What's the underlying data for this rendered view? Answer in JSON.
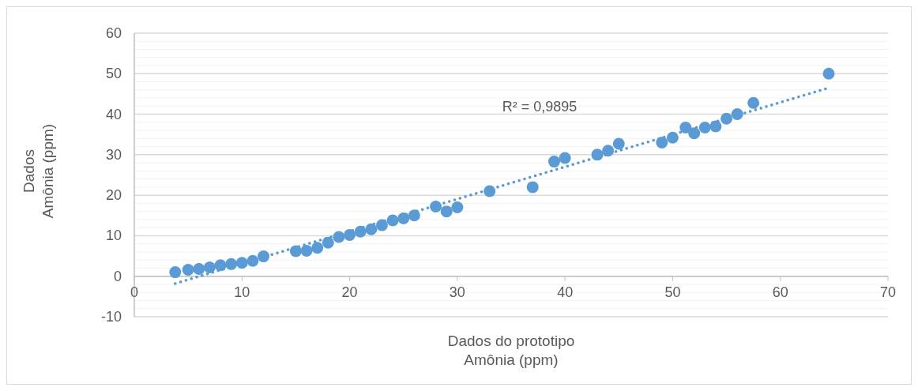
{
  "chart_data": {
    "type": "scatter",
    "xlabel": "Dados do prototipo\nAmônia (ppm)",
    "ylabel": "Dados\nAmônia (ppm)",
    "xlim": [
      0,
      70
    ],
    "xticks": [
      0,
      10,
      20,
      30,
      40,
      50,
      60,
      70
    ],
    "ylim": [
      -10,
      60
    ],
    "yticks": [
      -10,
      {
        "value": -8,
        "label": null
      },
      {
        "value": -6,
        "label": null
      },
      {
        "value": -4,
        "label": null
      },
      {
        "value": -2,
        "label": null
      },
      0,
      {
        "value": 2,
        "label": null
      },
      {
        "value": 4,
        "label": null
      },
      {
        "value": 6,
        "label": null
      },
      {
        "value": 8,
        "label": null
      },
      10,
      {
        "value": 12,
        "label": null
      },
      {
        "value": 14,
        "label": null
      },
      {
        "value": 16,
        "label": null
      },
      {
        "value": 18,
        "label": null
      },
      20,
      {
        "value": 22,
        "label": null
      },
      {
        "value": 24,
        "label": null
      },
      {
        "value": 26,
        "label": null
      },
      {
        "value": 28,
        "label": null
      },
      30,
      {
        "value": 32,
        "label": null
      },
      {
        "value": 34,
        "label": null
      },
      {
        "value": 36,
        "label": null
      },
      {
        "value": 38,
        "label": null
      },
      40,
      {
        "value": 42,
        "label": null
      },
      {
        "value": 44,
        "label": null
      },
      {
        "value": 46,
        "label": null
      },
      {
        "value": 48,
        "label": null
      },
      50,
      {
        "value": 52,
        "label": null
      },
      {
        "value": 54,
        "label": null
      },
      {
        "value": 56,
        "label": null
      },
      {
        "value": 58,
        "label": null
      },
      60
    ],
    "grid": "y",
    "annotations": [
      "R² = 0,9895"
    ],
    "series": [
      {
        "color": "#5b9bd5",
        "marker": "circle",
        "x": [
          3.8,
          5,
          6,
          7,
          8,
          9,
          10,
          11,
          12,
          15,
          16,
          17,
          18,
          19,
          20,
          21,
          22,
          23,
          24,
          25,
          26,
          28,
          29,
          30,
          33,
          37,
          39,
          40,
          43,
          44,
          45,
          49,
          50,
          51.2,
          52,
          53,
          54,
          55,
          56,
          57.5,
          64.5
        ],
        "values": [
          1,
          1.6,
          1.8,
          2.2,
          2.7,
          3,
          3.3,
          3.8,
          4.9,
          6.2,
          6.3,
          7,
          8.3,
          9.7,
          10.2,
          11,
          11.6,
          12.6,
          13.8,
          14.3,
          15,
          17.2,
          16,
          17,
          21,
          22,
          28.3,
          29.2,
          30,
          31,
          32.7,
          33,
          34.2,
          36.7,
          35.3,
          36.7,
          37,
          38.9,
          40,
          42.8,
          50
        ]
      },
      {
        "type": "line",
        "color": "#5b9bd5",
        "line_style": "dotted",
        "marker": "none",
        "x": [
          3.8,
          64.5
        ],
        "values": [
          -1.8,
          46.5
        ]
      }
    ]
  }
}
